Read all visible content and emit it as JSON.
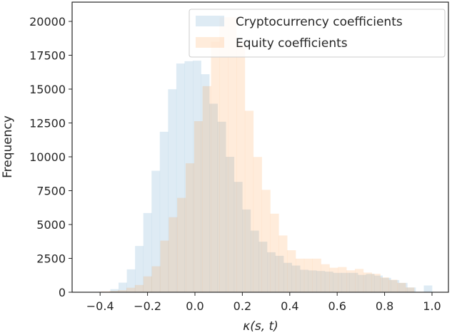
{
  "chart_data": {
    "type": "histogram",
    "title": "",
    "xlabel": "κ(s, t)",
    "ylabel": "Frequency",
    "xlim": [
      -0.5,
      1.07
    ],
    "ylim": [
      0,
      21000
    ],
    "xticks": [
      "-0.4",
      "-0.2",
      "0.0",
      "0.2",
      "0.4",
      "0.6",
      "0.8",
      "1.0"
    ],
    "xtick_values": [
      -0.4,
      -0.2,
      0.0,
      0.2,
      0.4,
      0.6,
      0.8,
      1.0
    ],
    "yticks": [
      "0",
      "2500",
      "5000",
      "7500",
      "10000",
      "12500",
      "15000",
      "17500",
      "20000"
    ],
    "ytick_values": [
      0,
      2500,
      5000,
      7500,
      10000,
      12500,
      15000,
      17500,
      20000
    ],
    "legend_position": "top-right",
    "grid": false,
    "series": [
      {
        "name": "Cryptocurrency coefficients",
        "color": "#1f77b4",
        "alpha": 0.15,
        "bin_start": -0.357,
        "bin_width": 0.0348,
        "values": [
          225,
          707,
          1690,
          3415,
          5850,
          8970,
          11850,
          14990,
          16890,
          17060,
          17100,
          16100,
          13920,
          12590,
          10000,
          8150,
          6110,
          4550,
          3730,
          2950,
          2690,
          2170,
          1970,
          1660,
          1610,
          1570,
          1520,
          1430,
          1430,
          1430,
          1280,
          1350,
          1230,
          1060,
          900,
          690,
          350,
          0,
          500
        ]
      },
      {
        "name": "Equity coefficients",
        "color": "#ff7f0e",
        "alpha": 0.15,
        "bin_start": -0.432,
        "bin_width": 0.0357,
        "values": [
          30,
          60,
          100,
          150,
          330,
          535,
          1170,
          1915,
          3810,
          5540,
          6970,
          9520,
          12630,
          15220,
          18500,
          20300,
          20300,
          18500,
          13400,
          9990,
          7560,
          5800,
          4190,
          3100,
          2480,
          2480,
          2480,
          2070,
          1810,
          1860,
          1620,
          1720,
          1450,
          1360,
          1090,
          920,
          690,
          350
        ]
      }
    ]
  }
}
